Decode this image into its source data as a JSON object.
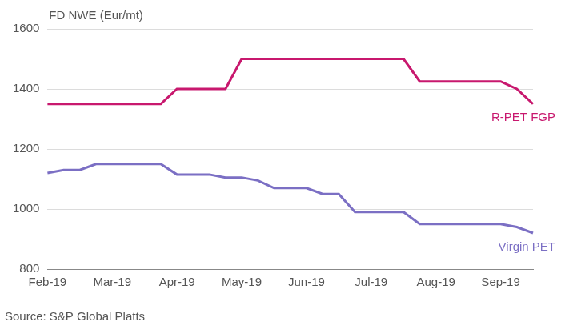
{
  "chart_data": {
    "type": "line",
    "y_label": "FD NWE (Eur/mt)",
    "source": "Source: S&P Global Platts",
    "categories": [
      "Feb-19",
      null,
      null,
      null,
      "Mar-19",
      null,
      null,
      null,
      "Apr-19",
      null,
      null,
      null,
      "May-19",
      null,
      null,
      null,
      "Jun-19",
      null,
      null,
      null,
      "Jul-19",
      null,
      null,
      null,
      "Aug-19",
      null,
      null,
      null,
      "Sep-19",
      null,
      null
    ],
    "series": [
      {
        "name": "R-PET FGP",
        "color": "#c8186e",
        "values": [
          1350,
          1350,
          1350,
          1350,
          1350,
          1350,
          1350,
          1350,
          1400,
          1400,
          1400,
          1400,
          1500,
          1500,
          1500,
          1500,
          1500,
          1500,
          1500,
          1500,
          1500,
          1500,
          1500,
          1425,
          1425,
          1425,
          1425,
          1425,
          1425,
          1400,
          1350
        ]
      },
      {
        "name": "Virgin PET",
        "color": "#7b6fc4",
        "values": [
          1120,
          1130,
          1130,
          1150,
          1150,
          1150,
          1150,
          1150,
          1115,
          1115,
          1115,
          1105,
          1105,
          1095,
          1070,
          1070,
          1070,
          1050,
          1050,
          990,
          990,
          990,
          990,
          950,
          950,
          950,
          950,
          950,
          950,
          940,
          920
        ]
      }
    ],
    "ylim": [
      800,
      1600
    ],
    "yticks": [
      800,
      1000,
      1200,
      1400,
      1600
    ],
    "grid": "y"
  }
}
